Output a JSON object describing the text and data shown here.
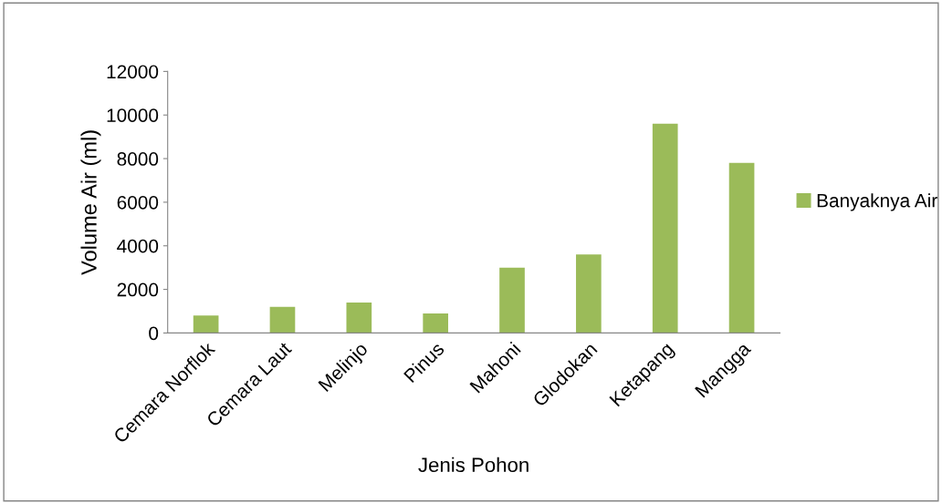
{
  "chart_data": {
    "type": "bar",
    "xlabel": "Jenis Pohon",
    "ylabel": "Volume Air (ml)",
    "categories": [
      "Cemara Norflok",
      "Cemara Laut",
      "Melinjo",
      "Pinus",
      "Mahoni",
      "Glodokan",
      "Ketapang",
      "Mangga"
    ],
    "series": [
      {
        "name": "Banyaknya Air",
        "color": "#9bbb59",
        "values": [
          800,
          1200,
          1400,
          900,
          3000,
          3600,
          9600,
          7800
        ]
      }
    ],
    "ylim": [
      0,
      12000
    ],
    "yticks": [
      0,
      2000,
      4000,
      6000,
      8000,
      10000,
      12000
    ],
    "grid": false,
    "legend": "right"
  }
}
